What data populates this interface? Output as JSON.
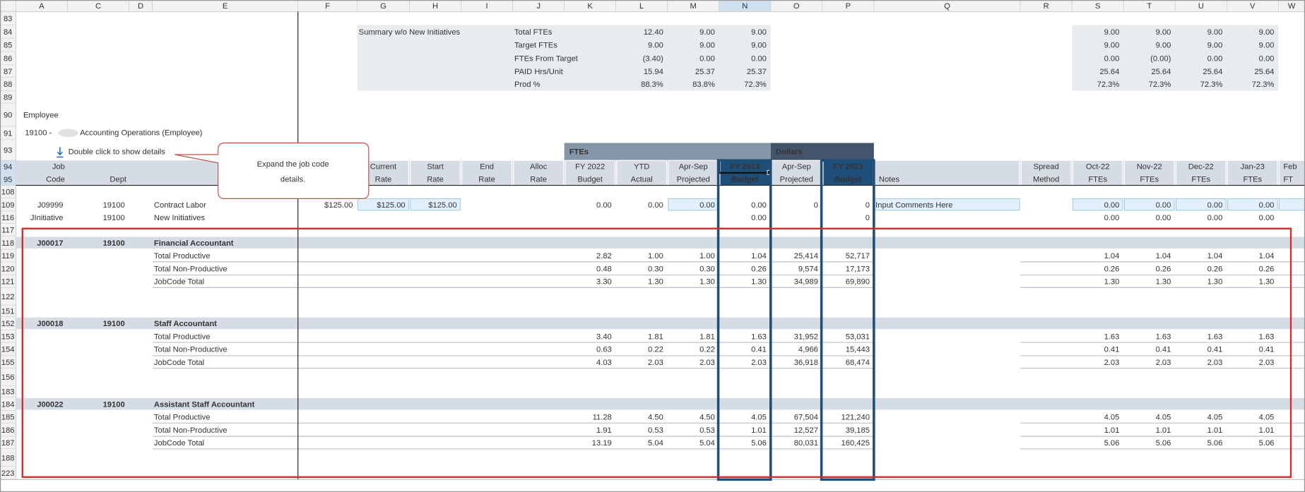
{
  "column_letters": [
    "A",
    "C",
    "D",
    "E",
    "F",
    "G",
    "H",
    "I",
    "J",
    "K",
    "L",
    "M",
    "N",
    "O",
    "P",
    "Q",
    "R",
    "S",
    "T",
    "U",
    "V",
    "W"
  ],
  "employee_title": "Employee",
  "employee_code": "19100 -",
  "employee_name": "Accounting Operations (Employee)",
  "details_link": "Double click to show details",
  "callout": [
    "Expand the job code",
    "details."
  ],
  "groups": [
    "FTEs",
    "Dollars"
  ],
  "headers": [
    [
      "Job",
      "Code"
    ],
    [
      "Dept"
    ],
    null,
    null,
    null,
    [
      "Current",
      "Rate"
    ],
    [
      "Start",
      "Rate"
    ],
    [
      "End",
      "Rate"
    ],
    [
      "Alloc",
      "Rate"
    ],
    [
      "FY 2022",
      "Budget"
    ],
    [
      "YTD",
      "Actual"
    ],
    [
      "Apr-Sep",
      "Projected"
    ],
    [
      "FY 2023",
      "Budget"
    ],
    [
      "Apr-Sep",
      "Projected"
    ],
    [
      "FY 2023",
      "Budget"
    ],
    [
      "Notes"
    ],
    [
      "Spread",
      "Method"
    ],
    [
      "Oct-22",
      "FTEs"
    ],
    [
      "Nov-22",
      "FTEs"
    ],
    [
      "Dec-22",
      "FTEs"
    ],
    [
      "Jan-23",
      "FTEs"
    ],
    [
      "Feb",
      "FT"
    ]
  ],
  "rows": [
    {
      "number": "83"
    },
    {
      "number": "84",
      "cells": [
        null,
        null,
        null,
        null,
        null,
        "Summary w/o New Initiatives",
        null,
        null,
        "Total FTEs",
        null,
        "12.40",
        "9.00",
        "9.00",
        null,
        null,
        null,
        null,
        "9.00",
        "9.00",
        "9.00",
        "9.00",
        null
      ]
    },
    {
      "number": "85",
      "cells": [
        null,
        null,
        null,
        null,
        null,
        null,
        null,
        null,
        "Target FTEs",
        null,
        "9.00",
        "9.00",
        "9.00",
        null,
        null,
        null,
        null,
        "9.00",
        "9.00",
        "9.00",
        "9.00",
        null
      ]
    },
    {
      "number": "86",
      "cells": [
        null,
        null,
        null,
        null,
        null,
        null,
        null,
        null,
        "FTEs From Target",
        null,
        "(3.40)",
        "0.00",
        "0.00",
        null,
        null,
        null,
        null,
        "0.00",
        "(0.00)",
        "0.00",
        "0.00",
        null
      ]
    },
    {
      "number": "87",
      "cells": [
        null,
        null,
        null,
        null,
        null,
        null,
        null,
        null,
        "PAID Hrs/Unit",
        null,
        "15.94",
        "25.37",
        "25.37",
        null,
        null,
        null,
        null,
        "25.64",
        "25.64",
        "25.64",
        "25.64",
        null
      ]
    },
    {
      "number": "88",
      "cells": [
        null,
        null,
        null,
        null,
        null,
        null,
        null,
        null,
        "Prod %",
        null,
        "88.3%",
        "83.8%",
        "72.3%",
        null,
        null,
        null,
        null,
        "72.3%",
        "72.3%",
        "72.3%",
        "72.3%",
        null
      ]
    },
    {
      "number": "89"
    },
    {
      "number": "90"
    },
    {
      "number": "91"
    },
    {
      "number": "93"
    },
    {
      "number": "94"
    },
    {
      "number": "95"
    },
    {
      "number": "108"
    },
    {
      "number": "109",
      "cells": [
        "J09999",
        "19100",
        null,
        "Contract Labor",
        "$125.00",
        "$125.00",
        "$125.00",
        null,
        null,
        "0.00",
        "0.00",
        "0.00",
        "0.00",
        "0",
        "0",
        "Input Comments Here",
        null,
        "0.00",
        "0.00",
        "0.00",
        "0.00",
        null
      ]
    },
    {
      "number": "116",
      "cells": [
        "JInitiative",
        "19100",
        null,
        "New Initiatives",
        null,
        null,
        null,
        null,
        null,
        null,
        null,
        null,
        "0.00",
        null,
        "0",
        null,
        null,
        "0.00",
        "0.00",
        "0.00",
        "0.00",
        null
      ]
    },
    {
      "number": "117"
    },
    {
      "number": "118",
      "cells": [
        "J00017",
        "19100",
        null,
        "Financial Accountant",
        null,
        null,
        null,
        null,
        null,
        null,
        null,
        null,
        null,
        null,
        null,
        null,
        null,
        null,
        null,
        null,
        null,
        null
      ]
    },
    {
      "number": "119",
      "cells": [
        null,
        null,
        null,
        "Total Productive",
        null,
        null,
        null,
        null,
        null,
        "2.82",
        "1.00",
        "1.00",
        "1.04",
        "25,414",
        "52,717",
        null,
        null,
        "1.04",
        "1.04",
        "1.04",
        "1.04",
        null
      ]
    },
    {
      "number": "120",
      "cells": [
        null,
        null,
        null,
        "Total Non-Productive",
        null,
        null,
        null,
        null,
        null,
        "0.48",
        "0.30",
        "0.30",
        "0.26",
        "9,574",
        "17,173",
        null,
        null,
        "0.26",
        "0.26",
        "0.26",
        "0.26",
        null
      ]
    },
    {
      "number": "121",
      "cells": [
        null,
        null,
        null,
        "JobCode Total",
        null,
        null,
        null,
        null,
        null,
        "3.30",
        "1.30",
        "1.30",
        "1.30",
        "34,989",
        "69,890",
        null,
        null,
        "1.30",
        "1.30",
        "1.30",
        "1.30",
        null
      ]
    },
    {
      "number": "122"
    },
    {
      "number": "151"
    },
    {
      "number": "152",
      "cells": [
        "J00018",
        "19100",
        null,
        "Staff Accountant",
        null,
        null,
        null,
        null,
        null,
        null,
        null,
        null,
        null,
        null,
        null,
        null,
        null,
        null,
        null,
        null,
        null,
        null
      ]
    },
    {
      "number": "153",
      "cells": [
        null,
        null,
        null,
        "Total Productive",
        null,
        null,
        null,
        null,
        null,
        "3.40",
        "1.81",
        "1.81",
        "1.63",
        "31,952",
        "53,031",
        null,
        null,
        "1.63",
        "1.63",
        "1.63",
        "1.63",
        null
      ]
    },
    {
      "number": "154",
      "cells": [
        null,
        null,
        null,
        "Total Non-Productive",
        null,
        null,
        null,
        null,
        null,
        "0.63",
        "0.22",
        "0.22",
        "0.41",
        "4,966",
        "15,443",
        null,
        null,
        "0.41",
        "0.41",
        "0.41",
        "0.41",
        null
      ]
    },
    {
      "number": "155",
      "cells": [
        null,
        null,
        null,
        "JobCode Total",
        null,
        null,
        null,
        null,
        null,
        "4.03",
        "2.03",
        "2.03",
        "2.03",
        "36,918",
        "68,474",
        null,
        null,
        "2.03",
        "2.03",
        "2.03",
        "2.03",
        null
      ]
    },
    {
      "number": "156"
    },
    {
      "number": "183"
    },
    {
      "number": "184",
      "cells": [
        "J00022",
        "19100",
        null,
        "Assistant Staff Accountant",
        null,
        null,
        null,
        null,
        null,
        null,
        null,
        null,
        null,
        null,
        null,
        null,
        null,
        null,
        null,
        null,
        null,
        null
      ]
    },
    {
      "number": "185",
      "cells": [
        null,
        null,
        null,
        "Total Productive",
        null,
        null,
        null,
        null,
        null,
        "11.28",
        "4.50",
        "4.50",
        "4.05",
        "67,504",
        "121,240",
        null,
        null,
        "4.05",
        "4.05",
        "4.05",
        "4.05",
        null
      ]
    },
    {
      "number": "186",
      "cells": [
        null,
        null,
        null,
        "Total Non-Productive",
        null,
        null,
        null,
        null,
        null,
        "1.91",
        "0.53",
        "0.53",
        "1.01",
        "12,527",
        "39,185",
        null,
        null,
        "1.01",
        "1.01",
        "1.01",
        "1.01",
        null
      ]
    },
    {
      "number": "187",
      "cells": [
        null,
        null,
        null,
        "JobCode Total",
        null,
        null,
        null,
        null,
        null,
        "13.19",
        "5.04",
        "5.04",
        "5.06",
        "80,031",
        "160,425",
        null,
        null,
        "5.06",
        "5.06",
        "5.06",
        "5.06",
        null
      ]
    },
    {
      "number": "188"
    },
    {
      "number": "223"
    }
  ]
}
